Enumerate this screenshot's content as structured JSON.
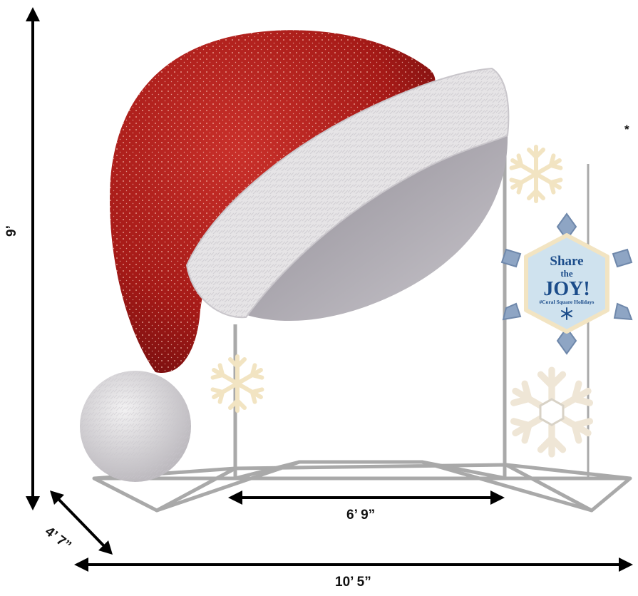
{
  "dimensions": {
    "height": "9’",
    "depth": "4’ 7”",
    "inner_width": "6’ 9”",
    "overall_width": "10’ 5”"
  },
  "sign": {
    "line1": "Share",
    "line2": "the",
    "line3": "JOY!",
    "line4": "#Coral Square Holidays"
  },
  "note": "*",
  "colors": {
    "hat_red": "#b3201c",
    "fur_white": "#e6e4e6",
    "fur_shadow": "#b5b2b8",
    "frame_gray": "#a9a9a9",
    "snowflake_warm": "#f2e4c2",
    "sign_blue": "#1b4c8a",
    "sign_panel": "#cfe2ee",
    "diamond_blue": "#8ea5c4"
  }
}
